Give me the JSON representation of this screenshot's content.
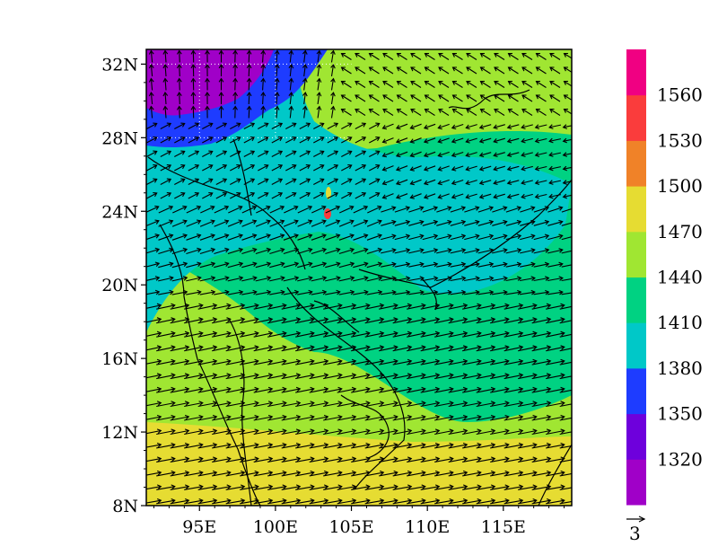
{
  "map": {
    "lat_labels": [
      "32N",
      "28N",
      "24N",
      "20N",
      "16N",
      "12N",
      "8N"
    ],
    "lat_values": [
      32,
      28,
      24,
      20,
      16,
      12,
      8
    ],
    "lon_labels": [
      "95E",
      "100E",
      "105E",
      "110E",
      "115E"
    ],
    "lon_values": [
      95,
      100,
      105,
      110,
      115
    ],
    "lon_range": [
      91.5,
      119.5
    ],
    "lat_range": [
      8,
      32.8
    ],
    "grid_lines": "dotted",
    "vector_reference": "3"
  },
  "colorbar": {
    "labels": [
      "1320",
      "1350",
      "1380",
      "1410",
      "1440",
      "1470",
      "1500",
      "1530",
      "1560"
    ],
    "colors": [
      "#a000c8",
      "#6e00dc",
      "#1e3cff",
      "#00c8c8",
      "#00d282",
      "#a0e632",
      "#e6dc32",
      "#f08228",
      "#fa3c3c",
      "#f00082"
    ]
  },
  "colors": {
    "purple": "#a000c8",
    "blue": "#1e3cff",
    "cyan": "#00c8c8",
    "green": "#00d282",
    "lime": "#a0e632",
    "yellow": "#e6dc32",
    "red": "#fa3c3c"
  }
}
